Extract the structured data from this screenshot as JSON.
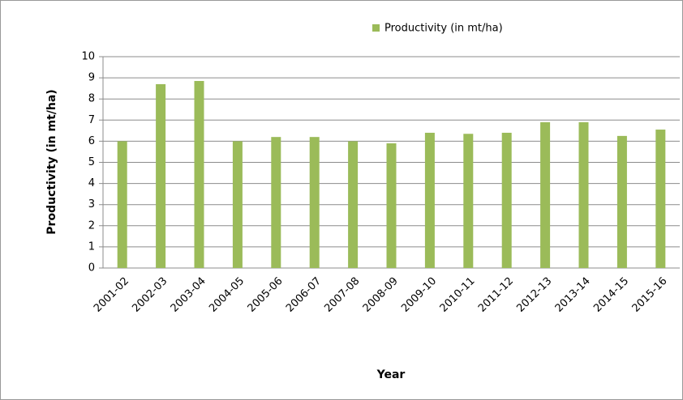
{
  "chart_data": {
    "type": "bar",
    "legend": "Productivity (in mt/ha)",
    "x_label": "Year",
    "y_label": "Productivity (in mt/ha)",
    "categories": [
      "2001-02",
      "2002-03",
      "2003-04",
      "2004-05",
      "2005-06",
      "2006-07",
      "2007-08",
      "2008-09",
      "2009-10",
      "2010-11",
      "2011-12",
      "2012-13",
      "2013-14",
      "2014-15",
      "2015-16"
    ],
    "values": [
      6.0,
      8.7,
      8.85,
      6.0,
      6.2,
      6.2,
      6.0,
      5.9,
      6.4,
      6.35,
      6.4,
      6.9,
      6.9,
      6.25,
      6.55
    ],
    "color": "#9bbb59",
    "ylim": [
      0,
      10
    ],
    "yticks": [
      0,
      1,
      2,
      3,
      4,
      5,
      6,
      7,
      8,
      9,
      10
    ],
    "grid": true
  }
}
